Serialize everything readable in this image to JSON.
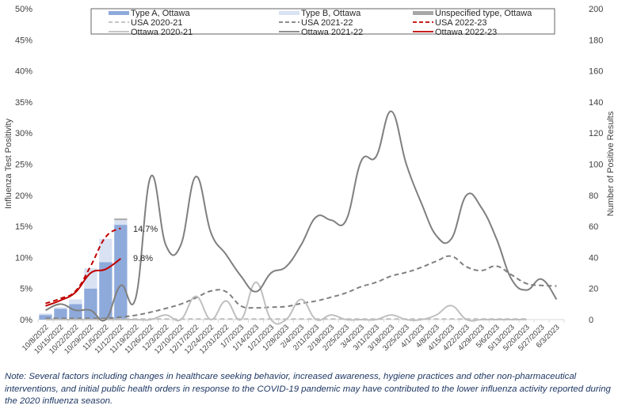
{
  "chart_data": {
    "type": "bar",
    "title": "",
    "xlabel": "",
    "ylabel": "Influenza Test Positivity",
    "y2label": "Number of Positive Results",
    "ylim": [
      0,
      50
    ],
    "y2lim": [
      0,
      200
    ],
    "yticks": [
      "0%",
      "5%",
      "10%",
      "15%",
      "20%",
      "25%",
      "30%",
      "35%",
      "40%",
      "45%",
      "50%"
    ],
    "y2ticks": [
      "0",
      "20",
      "40",
      "60",
      "80",
      "100",
      "120",
      "140",
      "160",
      "180",
      "200"
    ],
    "legend_position": "top",
    "categories": [
      "10/8/2022",
      "10/15/2022",
      "10/22/2022",
      "10/29/2022",
      "11/5/2022",
      "11/12/2022",
      "11/19/2022",
      "11/26/2022",
      "12/3/2022",
      "12/10/2022",
      "12/17/2022",
      "12/24/2022",
      "12/31/2022",
      "1/7/2023",
      "1/14/2023",
      "1/21/2023",
      "1/28/2023",
      "2/4/2023",
      "2/11/2023",
      "2/18/2023",
      "2/25/2023",
      "3/4/2023",
      "3/11/2023",
      "3/18/2023",
      "3/25/2023",
      "4/1/2023",
      "4/8/2023",
      "4/15/2023",
      "4/22/2023",
      "4/29/2023",
      "5/6/2023",
      "5/13/2023",
      "5/20/2023",
      "5/27/2023",
      "6/3/2023"
    ],
    "bar_series": [
      {
        "name": "Type A, Ottawa",
        "color": "#8eaadb",
        "axis": "right",
        "values": [
          3,
          7,
          10,
          20,
          37,
          61
        ]
      },
      {
        "name": "Type B, Ottawa",
        "color": "#d9e2f3",
        "axis": "right",
        "values": [
          1,
          1,
          3,
          13,
          15,
          3
        ]
      },
      {
        "name": "Unspecified type, Ottawa",
        "color": "#a6a6a6",
        "axis": "right",
        "values": [
          0,
          0,
          0,
          0,
          0,
          1
        ]
      }
    ],
    "line_series": [
      {
        "name": "USA 2020-21",
        "color": "#bfbfbf",
        "dash": true,
        "axis": "left",
        "values": [
          0.1,
          0.1,
          0.1,
          0.1,
          0.1,
          0.1,
          0.1,
          0.1,
          0.1,
          0.1,
          0.1,
          0.1,
          0.1,
          0.1,
          0.1,
          0.1,
          0.1,
          0.1,
          0.1,
          0.1,
          0.1,
          0.1,
          0.1,
          0.1,
          0.1,
          0.1,
          0.1,
          0.1,
          0.1,
          0.1,
          0.1,
          0.1,
          0.1,
          null,
          null
        ]
      },
      {
        "name": "USA 2021-22",
        "color": "#7f7f7f",
        "dash": true,
        "axis": "left",
        "values": [
          0.2,
          0.2,
          0.2,
          0.2,
          0.2,
          0.4,
          0.7,
          1.2,
          1.8,
          2.5,
          3.5,
          4.6,
          4.5,
          2.2,
          1.9,
          2.0,
          2.1,
          2.6,
          3.0,
          3.6,
          4.3,
          5.3,
          6.0,
          7.0,
          7.6,
          8.4,
          9.4,
          10.2,
          8.5,
          7.9,
          8.6,
          7.2,
          5.8,
          5.5,
          5.4
        ]
      },
      {
        "name": "USA 2022-23",
        "color": "#c00000",
        "dash": true,
        "axis": "left",
        "values": [
          2.6,
          3.4,
          4.6,
          8.6,
          13.3,
          14.7
        ]
      },
      {
        "name": "Ottawa 2020-21",
        "color": "#bfbfbf",
        "dash": false,
        "axis": "right",
        "values": [
          0,
          0,
          0,
          0,
          0,
          0,
          0,
          0,
          3,
          0,
          15,
          0,
          12,
          0,
          24,
          0,
          0,
          13,
          0,
          3,
          0,
          0,
          0,
          3,
          0,
          0,
          3,
          9,
          0,
          0,
          0,
          0,
          0,
          null,
          null
        ]
      },
      {
        "name": "Ottawa 2021-22",
        "color": "#7f7f7f",
        "dash": false,
        "axis": "right",
        "values": [
          6,
          10,
          6,
          6,
          0,
          22,
          14,
          92,
          48,
          48,
          92,
          56,
          42,
          28,
          18,
          30,
          34,
          48,
          66,
          64,
          64,
          102,
          105,
          134,
          100,
          75,
          54,
          52,
          80,
          72,
          52,
          26,
          19,
          26,
          13
        ]
      },
      {
        "name": "Ottawa 2022-23",
        "color": "#c00000",
        "dash": false,
        "axis": "left",
        "values": [
          2.2,
          3.1,
          4.4,
          7.5,
          8.1,
          9.8
        ]
      }
    ],
    "annotations": [
      "14.7%",
      "9.8%"
    ]
  },
  "legend": [
    {
      "label": "Type A, Ottawa",
      "kind": "box",
      "color": "#8eaadb"
    },
    {
      "label": "Type B, Ottawa",
      "kind": "box",
      "color": "#d9e2f3"
    },
    {
      "label": "Unspecified type, Ottawa",
      "kind": "box",
      "color": "#a6a6a6"
    },
    {
      "label": "USA 2020-21",
      "kind": "dash",
      "color": "#bfbfbf"
    },
    {
      "label": "USA 2021-22",
      "kind": "dash",
      "color": "#7f7f7f"
    },
    {
      "label": "USA 2022-23",
      "kind": "dash",
      "color": "#c00000"
    },
    {
      "label": "Ottawa 2020-21",
      "kind": "line",
      "color": "#bfbfbf"
    },
    {
      "label": "Ottawa 2021-22",
      "kind": "line",
      "color": "#7f7f7f"
    },
    {
      "label": "Ottawa 2022-23",
      "kind": "line",
      "color": "#c00000"
    }
  ],
  "note": "Note: Several factors including changes in healthcare seeking behavior, increased awareness, hygiene practices and other non-pharmaceutical interventions, and initial public health orders in response to the COVID-19 pandemic may have contributed to the lower influenza activity reported during the 2020 influenza season."
}
